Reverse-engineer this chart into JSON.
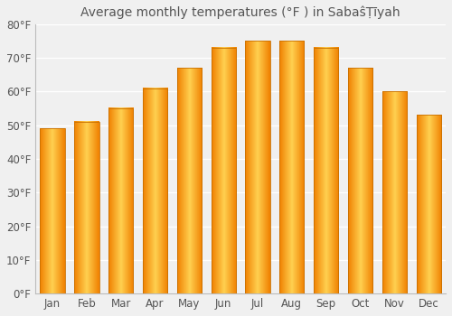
{
  "title": "Average monthly temperatures (°F ) in SabaŝṬīyah",
  "months": [
    "Jan",
    "Feb",
    "Mar",
    "Apr",
    "May",
    "Jun",
    "Jul",
    "Aug",
    "Sep",
    "Oct",
    "Nov",
    "Dec"
  ],
  "values": [
    49,
    51,
    55,
    61,
    67,
    73,
    75,
    75,
    73,
    67,
    60,
    53
  ],
  "ylim": [
    0,
    80
  ],
  "yticks": [
    0,
    10,
    20,
    30,
    40,
    50,
    60,
    70,
    80
  ],
  "background_color": "#f0f0f0",
  "grid_color": "#ffffff",
  "bar_color_center": "#FFD050",
  "bar_color_edge": "#F08000",
  "title_fontsize": 10,
  "tick_fontsize": 8.5,
  "bar_width": 0.72
}
